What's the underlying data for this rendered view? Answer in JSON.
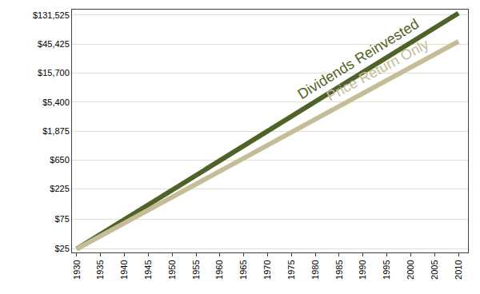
{
  "chart_data": {
    "type": "line",
    "log": "y",
    "grid": true,
    "x": [
      1930,
      2010
    ],
    "xlim": [
      1929,
      2012
    ],
    "xticks": [
      1930,
      1935,
      1940,
      1945,
      1950,
      1955,
      1960,
      1965,
      1970,
      1975,
      1980,
      1985,
      1990,
      1995,
      2000,
      2005,
      2010
    ],
    "ylim": [
      22,
      160000
    ],
    "yticks": [
      {
        "value": 25,
        "label": "$25"
      },
      {
        "value": 75,
        "label": "$75"
      },
      {
        "value": 225,
        "label": "$225"
      },
      {
        "value": 650,
        "label": "$650"
      },
      {
        "value": 1875,
        "label": "$1,875"
      },
      {
        "value": 5400,
        "label": "$5,400"
      },
      {
        "value": 15700,
        "label": "$15,700"
      },
      {
        "value": 45425,
        "label": "$45,425"
      },
      {
        "value": 131525,
        "label": "$131,525"
      }
    ],
    "series": [
      {
        "name": "Dividends Reinvested",
        "color": "#4f6228",
        "values": [
          25,
          140000
        ]
      },
      {
        "name": "Price Return Only",
        "color": "#c4bd97",
        "values": [
          25,
          50000
        ]
      }
    ]
  }
}
